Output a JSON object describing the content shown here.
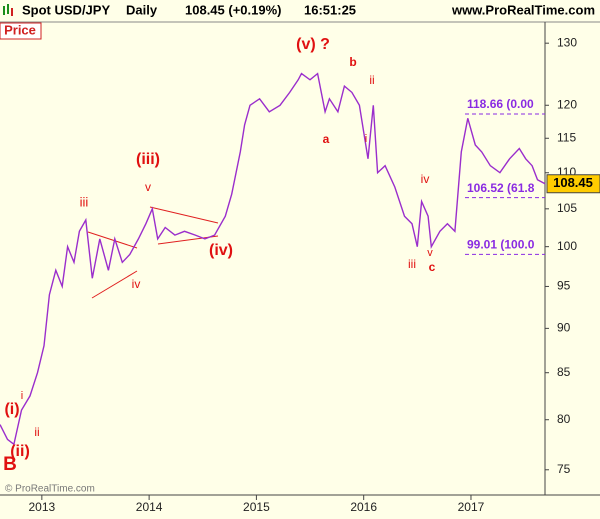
{
  "header": {
    "instrument": "Spot USD/JPY",
    "period": "Daily",
    "quote": "108.45 (+0.19%)",
    "time": "16:51:25",
    "site": "www.ProRealTime.com"
  },
  "chart_data": {
    "type": "line",
    "panel_label": "Price",
    "watermark": "© ProRealTime.com",
    "log_scale": true,
    "x": [
      2012.61,
      2012.68,
      2012.74,
      2012.81,
      2012.89,
      2012.96,
      2013.02,
      2013.07,
      2013.13,
      2013.19,
      2013.24,
      2013.3,
      2013.35,
      2013.41,
      2013.47,
      2013.54,
      2013.62,
      2013.68,
      2013.75,
      2013.82,
      2013.9,
      2013.97,
      2014.03,
      2014.08,
      2014.15,
      2014.24,
      2014.33,
      2014.43,
      2014.52,
      2014.61,
      2014.71,
      2014.77,
      2014.85,
      2014.89,
      2014.94,
      2015.03,
      2015.12,
      2015.22,
      2015.31,
      2015.39,
      2015.42,
      2015.5,
      2015.57,
      2015.64,
      2015.68,
      2015.76,
      2015.82,
      2015.89,
      2015.96,
      2016.04,
      2016.09,
      2016.13,
      2016.2,
      2016.29,
      2016.38,
      2016.45,
      2016.5,
      2016.54,
      2016.6,
      2016.63,
      2016.71,
      2016.78,
      2016.85,
      2016.91,
      2016.97,
      2017.04,
      2017.1,
      2017.18,
      2017.27,
      2017.36,
      2017.45,
      2017.51,
      2017.57,
      2017.62,
      2017.69
    ],
    "series": [
      {
        "color": "#9a2ecc",
        "values": [
          79.5,
          78,
          77.5,
          81,
          82.5,
          85,
          88,
          94,
          97,
          95,
          100,
          98,
          102,
          103.5,
          96,
          101,
          97,
          101,
          98,
          99,
          101,
          103,
          105,
          101,
          102.5,
          101.5,
          102,
          101.5,
          101,
          101.5,
          104,
          107,
          113,
          117,
          120,
          121,
          119,
          120,
          122,
          124,
          125,
          124,
          125,
          119,
          121,
          119,
          123,
          122,
          120,
          112,
          120,
          110,
          111,
          108,
          104,
          103,
          100,
          106,
          104,
          100,
          102,
          103,
          102,
          113,
          118,
          114,
          113,
          111,
          110,
          112,
          113.5,
          112,
          111,
          109,
          108.45
        ]
      }
    ],
    "xlim": [
      2012.61,
      2017.69
    ],
    "xticks": [
      2013,
      2014,
      2015,
      2016,
      2017
    ],
    "ylim": [
      72.6,
      133.6
    ],
    "yticks": [
      75,
      80,
      85,
      90,
      95,
      100,
      105,
      110,
      115,
      120,
      130
    ],
    "last_price": 108.45,
    "fib_levels": [
      {
        "value": 118.66,
        "label": "118.66 (0.00"
      },
      {
        "value": 106.52,
        "label": "106.52 (61.8"
      },
      {
        "value": 99.01,
        "label": "99.01 (100.0"
      }
    ],
    "annotations": [
      "(i)",
      "i",
      "ii",
      "(ii)",
      "B",
      "iii",
      "(iii)",
      "v",
      "iv",
      "(iv)",
      "(v) ?",
      "b",
      "a",
      "ii",
      "i",
      "iv",
      "iii",
      "v",
      "c"
    ]
  }
}
